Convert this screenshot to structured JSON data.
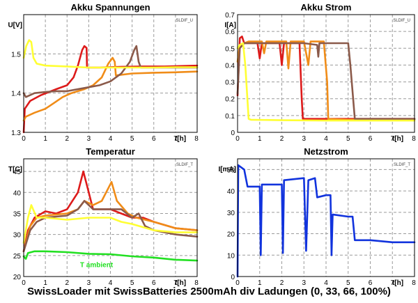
{
  "caption": "SwissLoader mit SwissBatteries 2500mAh div Ladungen (0, 33, 66, 100%)",
  "colors": {
    "red": "#dd1a1a",
    "orange": "#f08c18",
    "brown": "#8b5a4a",
    "yellow": "#ffff33",
    "green": "#22e022",
    "blue": "#1133dd",
    "grid": "#9a9a9a",
    "plotbg": "#ffffff"
  },
  "chart_data": [
    {
      "type": "line",
      "title": "Akku Spannungen",
      "tag": "SLDIF_U",
      "ylabel": "U[V]",
      "xlabel": "t[h]",
      "xlim": [
        0,
        8
      ],
      "ylim": [
        1.3,
        1.6
      ],
      "xticks": [
        0,
        1,
        2,
        3,
        4,
        5,
        6,
        7,
        8
      ],
      "yticks": [
        1.3,
        1.4,
        1.5
      ],
      "ytick_labels": [
        "1.3",
        "1.4",
        "1.5"
      ],
      "series": [
        {
          "color": "red",
          "points": [
            [
              0.0,
              1.3
            ],
            [
              0.05,
              1.36
            ],
            [
              0.3,
              1.38
            ],
            [
              0.8,
              1.395
            ],
            [
              1.5,
              1.41
            ],
            [
              2.0,
              1.42
            ],
            [
              2.3,
              1.44
            ],
            [
              2.5,
              1.47
            ],
            [
              2.7,
              1.51
            ],
            [
              2.8,
              1.52
            ],
            [
              2.9,
              1.515
            ],
            [
              2.92,
              1.465
            ],
            [
              3.5,
              1.465
            ],
            [
              4.5,
              1.467
            ],
            [
              5.5,
              1.468
            ],
            [
              6.5,
              1.468
            ],
            [
              8.0,
              1.47
            ]
          ]
        },
        {
          "color": "orange",
          "points": [
            [
              0.0,
              1.33
            ],
            [
              0.1,
              1.34
            ],
            [
              0.5,
              1.35
            ],
            [
              1.0,
              1.36
            ],
            [
              1.4,
              1.375
            ],
            [
              1.8,
              1.39
            ],
            [
              2.2,
              1.4
            ],
            [
              2.8,
              1.41
            ],
            [
              3.2,
              1.42
            ],
            [
              3.6,
              1.44
            ],
            [
              3.9,
              1.475
            ],
            [
              4.1,
              1.49
            ],
            [
              4.2,
              1.48
            ],
            [
              4.25,
              1.445
            ],
            [
              5.0,
              1.45
            ],
            [
              6.0,
              1.452
            ],
            [
              7.0,
              1.453
            ],
            [
              8.0,
              1.455
            ]
          ]
        },
        {
          "color": "brown",
          "points": [
            [
              0.0,
              1.4
            ],
            [
              0.1,
              1.39
            ],
            [
              0.5,
              1.4
            ],
            [
              1.0,
              1.403
            ],
            [
              1.5,
              1.405
            ],
            [
              2.0,
              1.405
            ],
            [
              2.5,
              1.41
            ],
            [
              3.0,
              1.415
            ],
            [
              3.5,
              1.42
            ],
            [
              4.0,
              1.43
            ],
            [
              4.5,
              1.45
            ],
            [
              4.9,
              1.48
            ],
            [
              5.1,
              1.51
            ],
            [
              5.2,
              1.52
            ],
            [
              5.3,
              1.48
            ],
            [
              5.4,
              1.465
            ],
            [
              6.0,
              1.465
            ],
            [
              7.0,
              1.465
            ],
            [
              8.0,
              1.465
            ]
          ]
        },
        {
          "color": "yellow",
          "points": [
            [
              0.0,
              1.49
            ],
            [
              0.12,
              1.52
            ],
            [
              0.25,
              1.535
            ],
            [
              0.35,
              1.53
            ],
            [
              0.45,
              1.49
            ],
            [
              0.6,
              1.475
            ],
            [
              1.0,
              1.47
            ],
            [
              2.0,
              1.468
            ],
            [
              3.0,
              1.465
            ],
            [
              4.0,
              1.465
            ],
            [
              5.0,
              1.465
            ],
            [
              6.0,
              1.465
            ],
            [
              7.0,
              1.466
            ],
            [
              8.0,
              1.466
            ]
          ]
        }
      ]
    },
    {
      "type": "line",
      "title": "Akku Strom",
      "tag": "SLDIF_U",
      "ylabel": "I[A]",
      "xlabel": "t[h]",
      "xlim": [
        0,
        8
      ],
      "ylim": [
        0,
        0.7
      ],
      "xticks": [
        0,
        1,
        2,
        3,
        4,
        5,
        6,
        7,
        8
      ],
      "yticks": [
        0,
        0.1,
        0.2,
        0.3,
        0.4,
        0.5,
        0.6,
        0.7
      ],
      "ytick_labels": [
        "0",
        "0.1",
        "0.2",
        "0.3",
        "0.4",
        "0.5",
        "0.6",
        "0.7"
      ],
      "series": [
        {
          "color": "red",
          "points": [
            [
              0.0,
              0.22
            ],
            [
              0.1,
              0.56
            ],
            [
              0.2,
              0.57
            ],
            [
              0.3,
              0.53
            ],
            [
              0.9,
              0.53
            ],
            [
              1.0,
              0.44
            ],
            [
              1.1,
              0.53
            ],
            [
              1.9,
              0.53
            ],
            [
              2.0,
              0.4
            ],
            [
              2.1,
              0.53
            ],
            [
              2.8,
              0.53
            ],
            [
              2.9,
              0.2
            ],
            [
              2.95,
              0.08
            ],
            [
              3.5,
              0.08
            ],
            [
              4.5,
              0.08
            ],
            [
              5.5,
              0.08
            ],
            [
              6.5,
              0.08
            ],
            [
              8.0,
              0.08
            ]
          ]
        },
        {
          "color": "orange",
          "points": [
            [
              0.0,
              0.42
            ],
            [
              0.1,
              0.52
            ],
            [
              0.5,
              0.54
            ],
            [
              1.1,
              0.54
            ],
            [
              1.2,
              0.47
            ],
            [
              1.3,
              0.54
            ],
            [
              2.2,
              0.54
            ],
            [
              2.3,
              0.38
            ],
            [
              2.4,
              0.54
            ],
            [
              3.0,
              0.54
            ],
            [
              3.2,
              0.4
            ],
            [
              3.3,
              0.54
            ],
            [
              3.9,
              0.54
            ],
            [
              4.05,
              0.3
            ],
            [
              4.1,
              0.08
            ],
            [
              5.0,
              0.075
            ],
            [
              6.0,
              0.075
            ],
            [
              7.0,
              0.078
            ],
            [
              8.0,
              0.078
            ]
          ]
        },
        {
          "color": "brown",
          "points": [
            [
              0.0,
              0.23
            ],
            [
              0.1,
              0.5
            ],
            [
              0.3,
              0.53
            ],
            [
              1.0,
              0.53
            ],
            [
              2.0,
              0.53
            ],
            [
              3.0,
              0.53
            ],
            [
              3.6,
              0.52
            ],
            [
              3.65,
              0.45
            ],
            [
              3.7,
              0.53
            ],
            [
              4.5,
              0.53
            ],
            [
              5.0,
              0.53
            ],
            [
              5.1,
              0.4
            ],
            [
              5.3,
              0.08
            ],
            [
              6.0,
              0.08
            ],
            [
              7.0,
              0.08
            ],
            [
              8.0,
              0.08
            ]
          ]
        },
        {
          "color": "yellow",
          "points": [
            [
              0.0,
              0.5
            ],
            [
              0.1,
              0.52
            ],
            [
              0.25,
              0.53
            ],
            [
              0.35,
              0.4
            ],
            [
              0.5,
              0.08
            ],
            [
              0.6,
              0.075
            ],
            [
              2.0,
              0.072
            ],
            [
              4.0,
              0.07
            ],
            [
              6.0,
              0.07
            ],
            [
              8.0,
              0.07
            ]
          ]
        }
      ]
    },
    {
      "type": "line",
      "title": "Temperatur",
      "tag": "SLDIF_T",
      "ylabel": "T[C]",
      "xlabel": "t[h]",
      "xlim": [
        0,
        8
      ],
      "ylim": [
        20,
        48
      ],
      "xticks": [
        0,
        1,
        2,
        3,
        4,
        5,
        6,
        7,
        8
      ],
      "yticks": [
        20,
        25,
        30,
        35,
        40,
        45
      ],
      "ytick_labels": [
        "20",
        "25",
        "30",
        "35",
        "40",
        "45"
      ],
      "annotation": "T ambient",
      "series": [
        {
          "color": "red",
          "points": [
            [
              0.0,
              26
            ],
            [
              0.2,
              31
            ],
            [
              0.5,
              34
            ],
            [
              1.0,
              35.5
            ],
            [
              1.5,
              35
            ],
            [
              2.0,
              36
            ],
            [
              2.5,
              40
            ],
            [
              2.75,
              45
            ],
            [
              2.9,
              42
            ],
            [
              3.2,
              36
            ],
            [
              4.0,
              36
            ],
            [
              4.5,
              35
            ],
            [
              5.0,
              34
            ],
            [
              5.5,
              34
            ],
            [
              6.0,
              33
            ],
            [
              7.0,
              31.5
            ],
            [
              8.0,
              31
            ]
          ]
        },
        {
          "color": "orange",
          "points": [
            [
              0.0,
              26
            ],
            [
              0.3,
              32
            ],
            [
              0.6,
              34
            ],
            [
              1.0,
              34.5
            ],
            [
              2.0,
              35
            ],
            [
              2.5,
              36
            ],
            [
              2.8,
              38
            ],
            [
              3.2,
              37
            ],
            [
              3.6,
              38
            ],
            [
              3.9,
              41
            ],
            [
              4.05,
              42.5
            ],
            [
              4.3,
              38
            ],
            [
              4.8,
              35
            ],
            [
              5.2,
              34
            ],
            [
              6.0,
              33
            ],
            [
              7.0,
              31.5
            ],
            [
              8.0,
              31
            ]
          ]
        },
        {
          "color": "brown",
          "points": [
            [
              0.0,
              26
            ],
            [
              0.3,
              31
            ],
            [
              0.6,
              33
            ],
            [
              1.0,
              34
            ],
            [
              2.0,
              34.5
            ],
            [
              2.5,
              36
            ],
            [
              2.8,
              38
            ],
            [
              3.2,
              36
            ],
            [
              4.0,
              36
            ],
            [
              4.5,
              36
            ],
            [
              5.0,
              34
            ],
            [
              5.3,
              35
            ],
            [
              5.6,
              32
            ],
            [
              6.0,
              31
            ],
            [
              7.0,
              30
            ],
            [
              8.0,
              29.5
            ]
          ]
        },
        {
          "color": "yellow",
          "points": [
            [
              0.0,
              28
            ],
            [
              0.2,
              34
            ],
            [
              0.35,
              37
            ],
            [
              0.6,
              34
            ],
            [
              1.0,
              34
            ],
            [
              2.0,
              33.5
            ],
            [
              3.0,
              34
            ],
            [
              4.0,
              34
            ],
            [
              4.5,
              33
            ],
            [
              5.0,
              32.5
            ],
            [
              6.0,
              31
            ],
            [
              7.0,
              30.5
            ],
            [
              8.0,
              30.5
            ]
          ]
        },
        {
          "color": "green",
          "points": [
            [
              0.0,
              24.8
            ],
            [
              0.1,
              24.2
            ],
            [
              0.2,
              25.6
            ],
            [
              0.5,
              26
            ],
            [
              1.0,
              26
            ],
            [
              2.0,
              25.8
            ],
            [
              3.0,
              25.4
            ],
            [
              4.0,
              25.3
            ],
            [
              5.0,
              24.8
            ],
            [
              6.0,
              24.5
            ],
            [
              7.0,
              24
            ],
            [
              8.0,
              23.8
            ]
          ]
        }
      ]
    },
    {
      "type": "line",
      "title": "Netzstrom",
      "tag": "SLDIF_T",
      "ylabel": "I[mA]",
      "xlabel": "t[h]",
      "xlim": [
        0,
        8
      ],
      "ylim": [
        0,
        55
      ],
      "xticks": [
        0,
        1,
        2,
        3,
        4,
        5,
        6,
        7,
        8
      ],
      "yticks": [
        0,
        10,
        20,
        30,
        40,
        50
      ],
      "ytick_labels": [
        "0",
        "10",
        "20",
        "30",
        "40",
        "50"
      ],
      "series": [
        {
          "color": "blue",
          "points": [
            [
              0.0,
              0
            ],
            [
              0.03,
              52
            ],
            [
              0.3,
              50
            ],
            [
              0.45,
              42
            ],
            [
              1.0,
              42
            ],
            [
              1.05,
              10
            ],
            [
              1.1,
              43
            ],
            [
              2.0,
              43
            ],
            [
              2.05,
              11
            ],
            [
              2.1,
              45
            ],
            [
              3.0,
              46
            ],
            [
              3.1,
              12
            ],
            [
              3.2,
              45
            ],
            [
              3.5,
              46
            ],
            [
              3.6,
              37
            ],
            [
              4.0,
              38
            ],
            [
              4.2,
              38
            ],
            [
              4.25,
              10
            ],
            [
              4.3,
              29
            ],
            [
              5.0,
              28
            ],
            [
              5.2,
              28
            ],
            [
              5.3,
              17
            ],
            [
              6.0,
              17
            ],
            [
              7.0,
              16
            ],
            [
              8.0,
              16
            ]
          ]
        }
      ]
    }
  ]
}
